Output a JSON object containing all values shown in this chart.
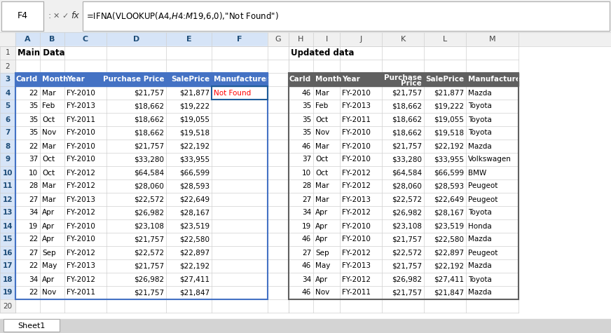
{
  "formula_bar_cell": "F4",
  "formula_bar_text": "=IFNA(VLOOKUP(A4,$H$4:$M$19,6,0),\"Not Found\")",
  "col_letters_left": [
    "A",
    "B",
    "C",
    "D",
    "E",
    "F",
    "G"
  ],
  "col_letters_right": [
    "H",
    "I",
    "J",
    "K",
    "L",
    "M"
  ],
  "row_numbers": [
    "1",
    "2",
    "3",
    "4",
    "5",
    "6",
    "7",
    "8",
    "9",
    "10",
    "11",
    "12",
    "13",
    "14",
    "15",
    "16",
    "17",
    "18",
    "19",
    "20"
  ],
  "main_data_label": "Main Data",
  "updated_data_label": "Updated data",
  "left_headers": [
    "CarId",
    "Month",
    "Year",
    "Purchase Price",
    "SalePrice",
    "Manufacturer"
  ],
  "right_headers": [
    "CarId",
    "Month",
    "Year",
    "Purchase\nPrice",
    "SalePrice",
    "Manufacturer"
  ],
  "left_data": [
    [
      "22",
      "Mar",
      "FY-2010",
      "$21,757",
      "$21,877",
      "Not Found"
    ],
    [
      "35",
      "Feb",
      "FY-2013",
      "$18,662",
      "$19,222",
      ""
    ],
    [
      "35",
      "Oct",
      "FY-2011",
      "$18,662",
      "$19,055",
      ""
    ],
    [
      "35",
      "Nov",
      "FY-2010",
      "$18,662",
      "$19,518",
      ""
    ],
    [
      "22",
      "Mar",
      "FY-2010",
      "$21,757",
      "$22,192",
      ""
    ],
    [
      "37",
      "Oct",
      "FY-2010",
      "$33,280",
      "$33,955",
      ""
    ],
    [
      "10",
      "Oct",
      "FY-2012",
      "$64,584",
      "$66,599",
      ""
    ],
    [
      "28",
      "Mar",
      "FY-2012",
      "$28,060",
      "$28,593",
      ""
    ],
    [
      "27",
      "Mar",
      "FY-2013",
      "$22,572",
      "$22,649",
      ""
    ],
    [
      "34",
      "Apr",
      "FY-2012",
      "$26,982",
      "$28,167",
      ""
    ],
    [
      "19",
      "Apr",
      "FY-2010",
      "$23,108",
      "$23,519",
      ""
    ],
    [
      "22",
      "Apr",
      "FY-2010",
      "$21,757",
      "$22,580",
      ""
    ],
    [
      "27",
      "Sep",
      "FY-2012",
      "$22,572",
      "$22,897",
      ""
    ],
    [
      "22",
      "May",
      "FY-2013",
      "$21,757",
      "$22,192",
      ""
    ],
    [
      "34",
      "Apr",
      "FY-2012",
      "$26,982",
      "$27,411",
      ""
    ],
    [
      "22",
      "Nov",
      "FY-2011",
      "$21,757",
      "$21,847",
      ""
    ]
  ],
  "right_data": [
    [
      "46",
      "Mar",
      "FY-2010",
      "$21,757",
      "$21,877",
      "Mazda"
    ],
    [
      "35",
      "Feb",
      "FY-2013",
      "$18,662",
      "$19,222",
      "Toyota"
    ],
    [
      "35",
      "Oct",
      "FY-2011",
      "$18,662",
      "$19,055",
      "Toyota"
    ],
    [
      "35",
      "Nov",
      "FY-2010",
      "$18,662",
      "$19,518",
      "Toyota"
    ],
    [
      "46",
      "Mar",
      "FY-2010",
      "$21,757",
      "$22,192",
      "Mazda"
    ],
    [
      "37",
      "Oct",
      "FY-2010",
      "$33,280",
      "$33,955",
      "Volkswagen"
    ],
    [
      "10",
      "Oct",
      "FY-2012",
      "$64,584",
      "$66,599",
      "BMW"
    ],
    [
      "28",
      "Mar",
      "FY-2012",
      "$28,060",
      "$28,593",
      "Peugeot"
    ],
    [
      "27",
      "Mar",
      "FY-2013",
      "$22,572",
      "$22,649",
      "Peugeot"
    ],
    [
      "34",
      "Apr",
      "FY-2012",
      "$26,982",
      "$28,167",
      "Toyota"
    ],
    [
      "19",
      "Apr",
      "FY-2010",
      "$23,108",
      "$23,519",
      "Honda"
    ],
    [
      "46",
      "Apr",
      "FY-2010",
      "$21,757",
      "$22,580",
      "Mazda"
    ],
    [
      "27",
      "Sep",
      "FY-2012",
      "$22,572",
      "$22,897",
      "Peugeot"
    ],
    [
      "46",
      "May",
      "FY-2013",
      "$21,757",
      "$22,192",
      "Mazda"
    ],
    [
      "34",
      "Apr",
      "FY-2012",
      "$26,982",
      "$27,411",
      "Toyota"
    ],
    [
      "46",
      "Nov",
      "FY-2011",
      "$21,757",
      "$21,847",
      "Mazda"
    ]
  ],
  "header_bg_left": "#4472C4",
  "header_bg_right": "#606060",
  "header_fg": "#FFFFFF",
  "row_bg_odd": "#FFFFFF",
  "row_bg_even": "#FFFFFF",
  "grid_color": "#AAAAAA",
  "formula_bar_bg": "#F0F0F0",
  "excel_bg": "#FFFFFF",
  "tab_bar_bg": "#D4D4D4",
  "cell_ref_bg": "#FFFFFF",
  "title_bar_bg": "#F0F0F0",
  "col_header_bg": "#F0F0F0",
  "row_header_bg": "#F0F0F0",
  "selected_col_bg": "#D6E4F7",
  "selected_row_bg": "#E8E8E8",
  "not_found_color": "#FF0000"
}
